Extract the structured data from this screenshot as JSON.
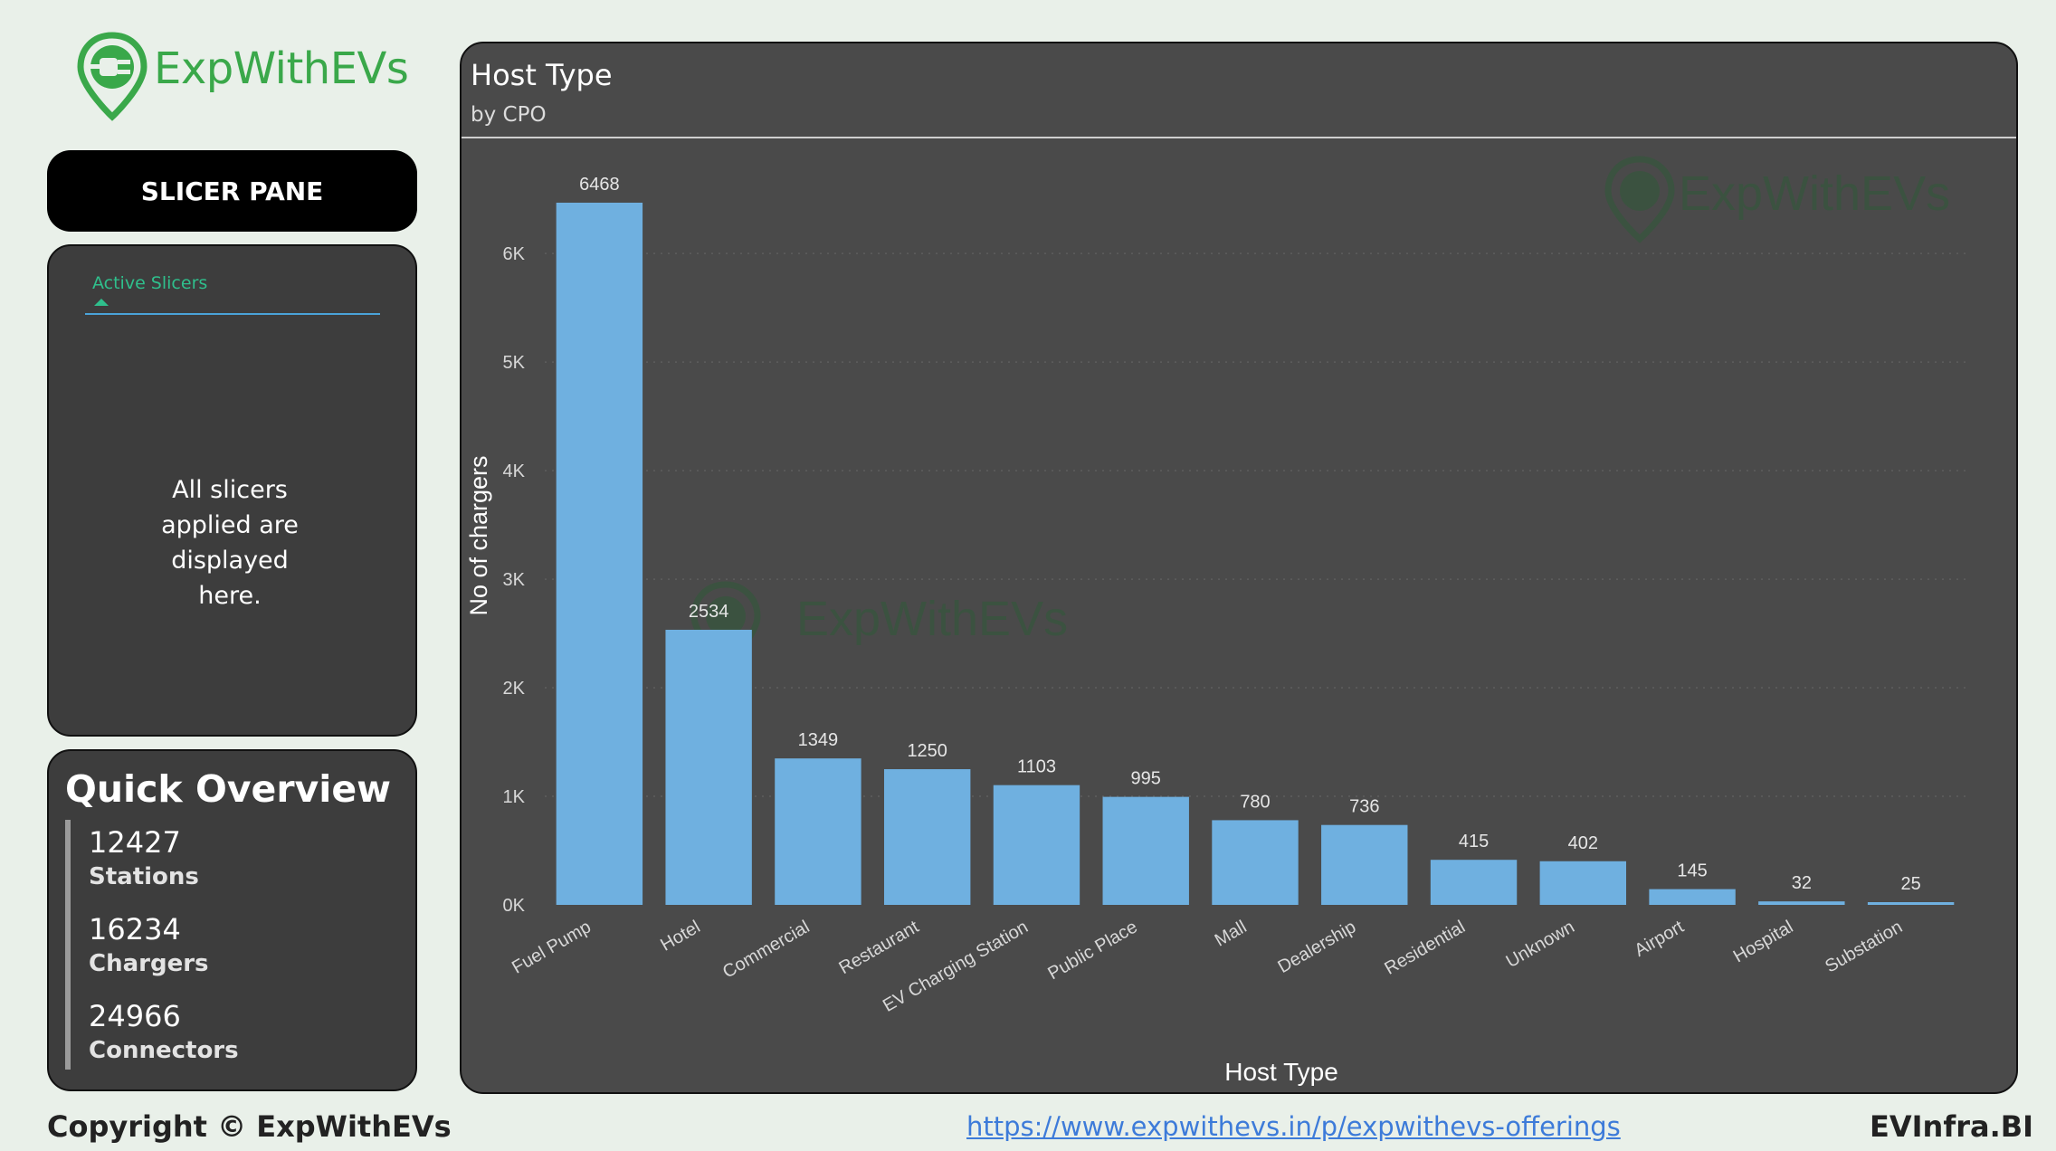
{
  "logo": {
    "text": "ExpWithEVs",
    "color": "#3aa84a"
  },
  "slicer_pane": {
    "button_label": "SLICER PANE",
    "tab_label": "Active Slicers",
    "message": [
      "All slicers",
      "applied are",
      "displayed",
      "here."
    ]
  },
  "overview": {
    "title": "Quick Overview",
    "kpis": [
      {
        "value": "12427",
        "label": "Stations"
      },
      {
        "value": "16234",
        "label": "Chargers"
      },
      {
        "value": "24966",
        "label": "Connectors"
      }
    ]
  },
  "chart_card": {
    "title": "Host Type",
    "subtitle": "by CPO",
    "watermark": "ExpWithEVs"
  },
  "chart_data": {
    "type": "bar",
    "title": "Host Type",
    "subtitle": "by CPO",
    "xlabel": "Host Type",
    "ylabel": "No of chargers",
    "categories": [
      "Fuel Pump",
      "Hotel",
      "Commercial",
      "Restaurant",
      "EV Charging Station",
      "Public Place",
      "Mall",
      "Dealership",
      "Residential",
      "Unknown",
      "Airport",
      "Hospital",
      "Substation"
    ],
    "values": [
      6468,
      2534,
      1349,
      1250,
      1103,
      995,
      780,
      736,
      415,
      402,
      145,
      32,
      25
    ],
    "ylim": [
      0,
      6468
    ],
    "yticks": [
      0,
      1000,
      2000,
      3000,
      4000,
      5000,
      6000
    ],
    "ytick_labels": [
      "0K",
      "1K",
      "2K",
      "3K",
      "4K",
      "5K",
      "6K"
    ],
    "bar_color": "#6fb0e0",
    "grid": true,
    "legend": false
  },
  "footer": {
    "copyright": "Copyright © ExpWithEVs",
    "link": "https://www.expwithevs.in/p/expwithevs-offerings",
    "brand": "EVInfra.BI"
  }
}
